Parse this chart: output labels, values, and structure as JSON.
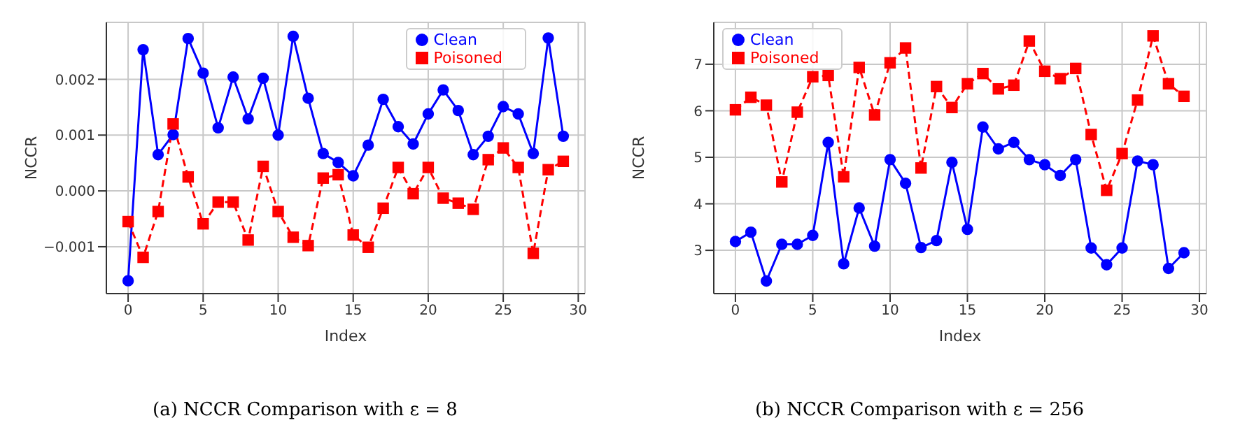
{
  "chart_data": [
    {
      "type": "line",
      "xlabel": "Index",
      "ylabel": "NCCR",
      "annotations": [
        "(a) NCCR Comparison with ε = 8"
      ],
      "x": [
        0,
        1,
        2,
        3,
        4,
        5,
        6,
        7,
        8,
        9,
        10,
        11,
        12,
        13,
        14,
        15,
        16,
        17,
        18,
        19,
        20,
        21,
        22,
        23,
        24,
        25,
        26,
        27,
        28,
        29
      ],
      "series": [
        {
          "name": "Clean",
          "color": "#0000ff",
          "marker": "circle",
          "line_style": "solid",
          "values": [
            -0.00161,
            0.00253,
            0.00065,
            0.00101,
            0.00273,
            0.00211,
            0.00113,
            0.00204,
            0.00129,
            0.00202,
            0.001,
            0.00277,
            0.00166,
            0.00067,
            0.00051,
            0.00027,
            0.00082,
            0.00164,
            0.00115,
            0.00084,
            0.00138,
            0.00181,
            0.00144,
            0.00065,
            0.00098,
            0.00151,
            0.00138,
            0.00067,
            0.00274,
            0.00098
          ]
        },
        {
          "name": "Poisoned",
          "color": "#ff0000",
          "marker": "square",
          "line_style": "dashed",
          "values": [
            -0.00055,
            -0.00119,
            -0.00037,
            0.0012,
            0.00025,
            -0.00059,
            -0.0002,
            -0.0002,
            -0.00088,
            0.00044,
            -0.00037,
            -0.00083,
            -0.00098,
            0.00023,
            0.00029,
            -0.00079,
            -0.00101,
            -0.00031,
            0.00042,
            -5e-05,
            0.00042,
            -0.00013,
            -0.00022,
            -0.00033,
            0.00056,
            0.00077,
            0.00042,
            -0.00112,
            0.00038,
            0.00053
          ]
        }
      ],
      "xlim": [
        -1.45,
        30.45
      ],
      "xticks": [
        0,
        5,
        10,
        15,
        20,
        25,
        30
      ],
      "ylim": [
        -0.00184,
        0.00302
      ],
      "yticks": [
        {
          "value": -0.001,
          "label": "−0.001"
        },
        {
          "value": 0,
          "label": "0.000"
        },
        {
          "value": 0.001,
          "label": "0.001"
        },
        {
          "value": 0.002,
          "label": "0.002"
        }
      ],
      "grid": true,
      "legend": "top right"
    },
    {
      "type": "line",
      "xlabel": "Index",
      "ylabel": "NCCR",
      "annotations": [
        "(b) NCCR Comparison with ε = 256"
      ],
      "x": [
        0,
        1,
        2,
        3,
        4,
        5,
        6,
        7,
        8,
        9,
        10,
        11,
        12,
        13,
        14,
        15,
        16,
        17,
        18,
        19,
        20,
        21,
        22,
        23,
        24,
        25,
        26,
        27,
        28,
        29
      ],
      "series": [
        {
          "name": "Clean",
          "color": "#0000ff",
          "marker": "circle",
          "line_style": "solid",
          "values": [
            3.19,
            3.39,
            2.34,
            3.13,
            3.13,
            3.32,
            5.32,
            2.71,
            3.91,
            3.09,
            4.95,
            4.44,
            3.06,
            3.21,
            4.89,
            3.45,
            5.65,
            5.18,
            5.32,
            4.95,
            4.84,
            4.61,
            4.95,
            3.05,
            2.69,
            3.05,
            4.92,
            4.84,
            2.61,
            2.95
          ]
        },
        {
          "name": "Poisoned",
          "color": "#ff0000",
          "marker": "square",
          "line_style": "dashed",
          "values": [
            6.02,
            6.29,
            6.12,
            4.47,
            5.97,
            6.73,
            6.76,
            4.58,
            6.93,
            5.91,
            7.03,
            7.35,
            4.77,
            6.52,
            6.07,
            6.58,
            6.8,
            6.47,
            6.55,
            7.5,
            6.85,
            6.69,
            6.91,
            5.49,
            4.29,
            5.08,
            6.23,
            7.61,
            6.58,
            6.31
          ]
        }
      ],
      "xlim": [
        -1.4,
        30.45
      ],
      "xticks": [
        0,
        5,
        10,
        15,
        20,
        25,
        30
      ],
      "ylim": [
        2.07,
        7.9
      ],
      "yticks": [
        3,
        4,
        5,
        6,
        7
      ],
      "grid": true,
      "legend": "top left"
    }
  ]
}
